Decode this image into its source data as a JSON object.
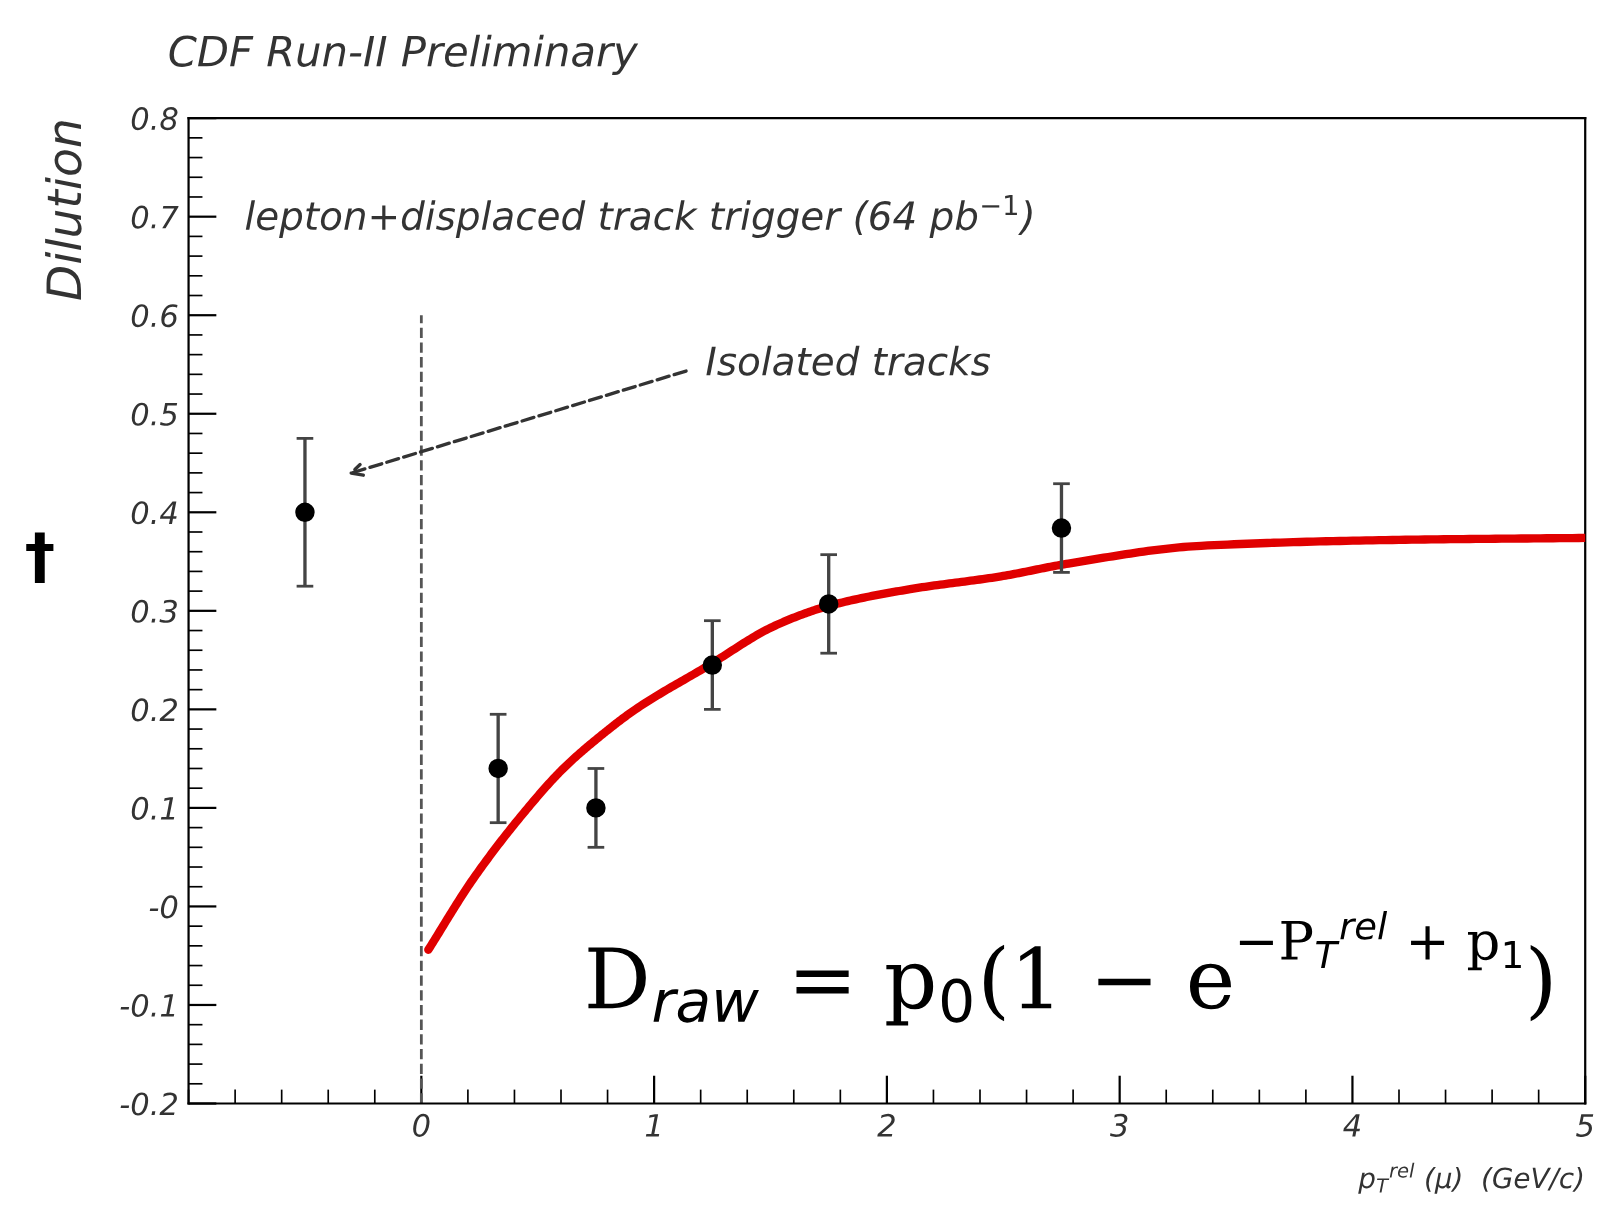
{
  "chart_data": {
    "type": "scatter",
    "title": "CDF Run-II Preliminary",
    "xlabel": "p$_{T}$$^{rel}$ (μ)  (GeV/c)",
    "ylabel": "Dilution",
    "xlim": [
      -1,
      5
    ],
    "xticks": [
      0,
      1,
      2,
      3,
      4,
      5
    ],
    "ylim": [
      -0.2,
      0.8
    ],
    "yticks": [
      -0.2,
      -0.1,
      {
        "value": 0,
        "label": "-0"
      },
      0.1,
      0.2,
      0.3,
      0.4,
      0.5,
      0.6,
      0.7,
      0.8
    ],
    "series": [
      {
        "marker": "circle",
        "color": "#000000",
        "x": [
          -0.5,
          0.33,
          0.75,
          1.25,
          1.75,
          2.75
        ],
        "values": [
          0.4,
          0.14,
          0.1,
          0.245,
          0.307,
          0.384
        ],
        "errors": [
          0.075,
          0.055,
          0.04,
          0.045,
          0.05,
          0.045
        ]
      },
      {
        "type": "line",
        "color": "#e00000",
        "line_style": "solid",
        "x": [
          0.03,
          0.22,
          0.44,
          0.61,
          0.78,
          0.92,
          1.23,
          1.52,
          1.75,
          2.1,
          2.49,
          2.78,
          3.35,
          4.2,
          5.0
        ],
        "values": [
          -0.044,
          0.027,
          0.095,
          0.14,
          0.175,
          0.2,
          0.244,
          0.285,
          0.305,
          0.322,
          0.335,
          0.348,
          0.366,
          0.372,
          0.374
        ]
      }
    ],
    "ref_lines": [
      {
        "axis": "x",
        "value": 0,
        "line_style": "dashed",
        "color": "#555555"
      }
    ],
    "annotations": [
      "lepton+displaced track trigger (64 pb$^{−1}$)",
      "Isolated tracks",
      "D$_{raw}$ = p$_{0}$(1 − e",
      "−P$_{T}$$^{rel}$ + p$_{1}$",
      ")",
      "†"
    ]
  }
}
